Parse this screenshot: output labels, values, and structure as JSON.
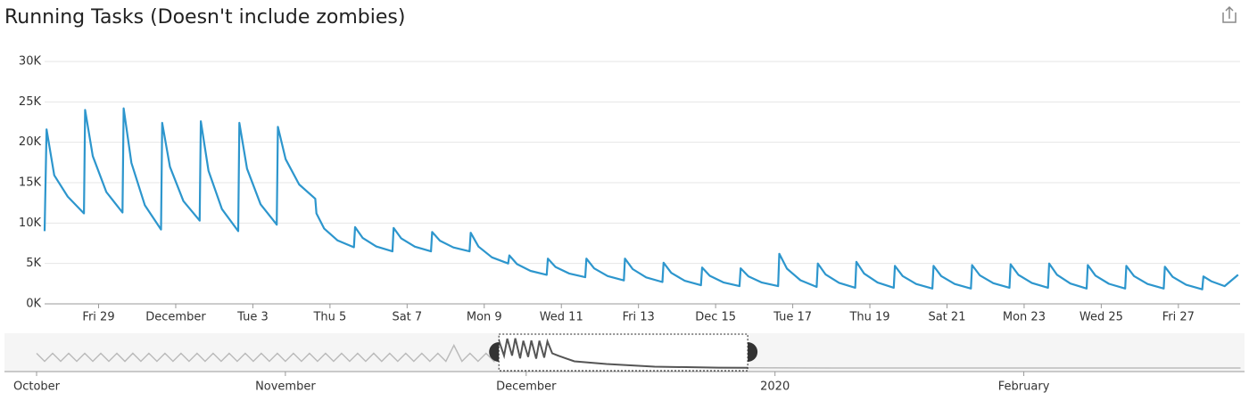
{
  "chart_data": [
    {
      "type": "line",
      "title": "Running Tasks (Doesn't include zombies)",
      "x": [
        58.6,
        58.65,
        58.85,
        59.2,
        59.62,
        59.65,
        59.85,
        60.2,
        60.62,
        60.65,
        60.85,
        61.2,
        61.62,
        61.65,
        61.85,
        62.2,
        62.62,
        62.65,
        62.85,
        63.2,
        63.62,
        63.65,
        63.85,
        64.2,
        64.62,
        64.65,
        64.85,
        65.2,
        65.62,
        65.65,
        65.85,
        66.2,
        66.62,
        66.65,
        66.85,
        67.2,
        67.62,
        67.65,
        67.85,
        68.2,
        68.62,
        68.65,
        68.85,
        69.2,
        69.62,
        69.65,
        69.85,
        70.2,
        70.62,
        70.65,
        70.85,
        71.2,
        71.62,
        71.65,
        71.85,
        72.2,
        72.62,
        72.65,
        72.85,
        73.2,
        73.62,
        73.65,
        73.85,
        74.2,
        74.62,
        74.65,
        74.85,
        75.2,
        75.62,
        75.65,
        75.85,
        76.2,
        76.62,
        76.65,
        76.85,
        77.2,
        77.62,
        77.65,
        77.85,
        78.2,
        78.62,
        78.65,
        78.85,
        79.2,
        79.62,
        79.65,
        79.85,
        80.2,
        80.62,
        80.65,
        80.85,
        81.2,
        81.62,
        81.65,
        81.85,
        82.2,
        82.62,
        82.65,
        82.85,
        83.2,
        83.62,
        83.65,
        83.85,
        84.2,
        84.62,
        84.65,
        84.85,
        85.2,
        85.62,
        85.65,
        85.85,
        86.2,
        86.62,
        86.65,
        86.85,
        87.2,
        87.62,
        87.65,
        87.85,
        88.2,
        88.62,
        88.65,
        88.85,
        89.2,
        89.55
      ],
      "series": [
        {
          "name": "Running Tasks",
          "color": "#2d96cd",
          "values": [
            9000,
            21600,
            15920,
            13280,
            11200,
            24000,
            18290,
            13840,
            11300,
            24200,
            17450,
            12200,
            9200,
            22400,
            16960,
            12720,
            10300,
            22600,
            16480,
            11720,
            9000,
            22400,
            16730,
            12320,
            9800,
            21900,
            17900,
            14780,
            13000,
            11200,
            9310,
            7840,
            7000,
            9500,
            8150,
            7100,
            6500,
            9400,
            8100,
            7080,
            6500,
            8900,
            7820,
            6980,
            6500,
            8800,
            7090,
            5760,
            5000,
            6000,
            4920,
            4080,
            3600,
            5600,
            4570,
            3760,
            3300,
            5600,
            4390,
            3440,
            2900,
            5600,
            4300,
            3280,
            2700,
            5100,
            3840,
            2860,
            2300,
            4500,
            3470,
            2660,
            2200,
            4400,
            3410,
            2640,
            2200,
            6200,
            4360,
            2920,
            2100,
            5000,
            3650,
            2600,
            2000,
            5200,
            3760,
            2640,
            2000,
            4700,
            3440,
            2460,
            1900,
            4700,
            3440,
            2460,
            1900,
            4800,
            3540,
            2560,
            2000,
            4900,
            3600,
            2580,
            2000,
            5000,
            3610,
            2520,
            1900,
            4800,
            3500,
            2480,
            1900,
            4700,
            3440,
            2460,
            1900,
            4600,
            3340,
            2360,
            1800,
            3400,
            2800,
            2200,
            3600
          ]
        }
      ],
      "xlim": [
        58.6,
        89.6
      ],
      "xticks": [
        {
          "value": 60,
          "label": "Fri 29"
        },
        {
          "value": 62,
          "label": "December"
        },
        {
          "value": 64,
          "label": "Tue 3"
        },
        {
          "value": 66,
          "label": "Thu 5"
        },
        {
          "value": 68,
          "label": "Sat 7"
        },
        {
          "value": 70,
          "label": "Mon 9"
        },
        {
          "value": 72,
          "label": "Wed 11"
        },
        {
          "value": 74,
          "label": "Fri 13"
        },
        {
          "value": 76,
          "label": "Dec 15"
        },
        {
          "value": 78,
          "label": "Tue 17"
        },
        {
          "value": 80,
          "label": "Thu 19"
        },
        {
          "value": 82,
          "label": "Sat 21"
        },
        {
          "value": 84,
          "label": "Mon 23"
        },
        {
          "value": 86,
          "label": "Wed 25"
        },
        {
          "value": 88,
          "label": "Fri 27"
        }
      ],
      "ylim": [
        0,
        30000
      ],
      "yticks": [
        {
          "value": 0,
          "label": "0K"
        },
        {
          "value": 5000,
          "label": "5K"
        },
        {
          "value": 10000,
          "label": "10K"
        },
        {
          "value": 15000,
          "label": "15K"
        },
        {
          "value": 20000,
          "label": "20K"
        },
        {
          "value": 25000,
          "label": "25K"
        },
        {
          "value": 30000,
          "label": "30K"
        }
      ],
      "grid": true
    },
    {
      "type": "navigator",
      "x": [
        1,
        2,
        3,
        4,
        5,
        6,
        7,
        8,
        9,
        10,
        11,
        12,
        13,
        14,
        15,
        16,
        17,
        18,
        19,
        20,
        21,
        22,
        23,
        24,
        25,
        26,
        27,
        28,
        29,
        30,
        31,
        32,
        33,
        34,
        35,
        36,
        37,
        38,
        39,
        40,
        41,
        42,
        43,
        44,
        45,
        46,
        47,
        48,
        49,
        50,
        51,
        52,
        53,
        54,
        55,
        56,
        57,
        58,
        58.65,
        59.25,
        59.65,
        60.25,
        60.65,
        61.25,
        61.65,
        62.25,
        62.65,
        63.25,
        63.65,
        64.25,
        64.65,
        65.25,
        66,
        68,
        72,
        78,
        86,
        100,
        125,
        135,
        151
      ],
      "series": [
        {
          "name": "Running Tasks",
          "color": "#bbbbbb",
          "values": [
            13000,
            7000,
            13000,
            7000,
            13000,
            7000,
            13000,
            7000,
            13000,
            7000,
            13000,
            7000,
            13000,
            7000,
            13000,
            7000,
            13000,
            7000,
            13000,
            7000,
            13000,
            7000,
            13000,
            7000,
            13000,
            7000,
            13000,
            7000,
            13000,
            7000,
            13000,
            7000,
            13000,
            7000,
            13000,
            7000,
            13000,
            7000,
            13000,
            7000,
            13000,
            7000,
            13000,
            7000,
            13000,
            7000,
            13000,
            7000,
            13000,
            7000,
            13000,
            7000,
            19000,
            7000,
            13000,
            7000,
            13000,
            7000,
            21600,
            11200,
            24000,
            11300,
            24200,
            9200,
            22400,
            10300,
            22600,
            9000,
            22400,
            9800,
            21900,
            13000,
            11200,
            7000,
            5000,
            3000,
            2300,
            2000,
            2000,
            2000,
            2000
          ]
        }
      ],
      "xlim": [
        -3,
        151.5
      ],
      "ylim": [
        0,
        28000
      ],
      "xticks": [
        {
          "value": 1,
          "label": "October"
        },
        {
          "value": 32,
          "label": "November"
        },
        {
          "value": 62,
          "label": "December"
        },
        {
          "value": 93,
          "label": "2020"
        },
        {
          "value": 124,
          "label": "February"
        }
      ],
      "selected_color": "#555555"
    }
  ]
}
